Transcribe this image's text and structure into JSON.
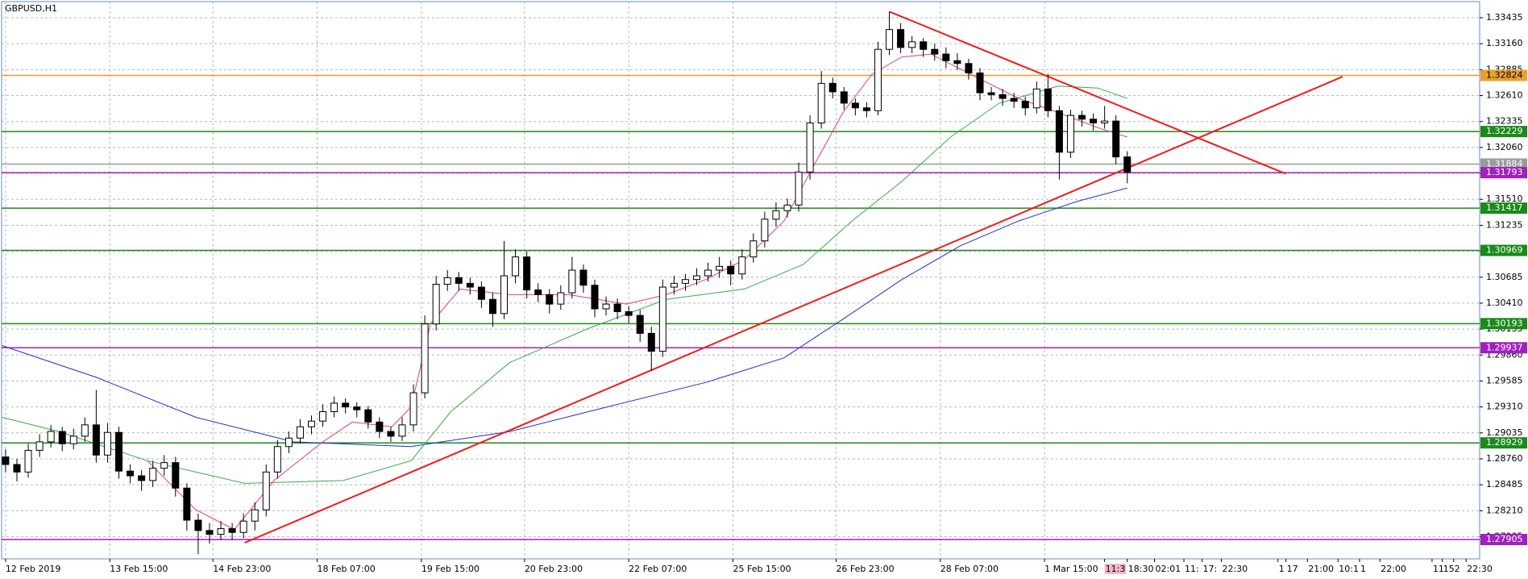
{
  "chart_data": {
    "type": "candlestick",
    "title": "GBPUSD,H1",
    "xlim": [
      -0.35,
      130.1
    ],
    "ylim": [
      1.277,
      1.33606
    ],
    "grid": true,
    "up_color": "#ffffff",
    "down_color": "#000000",
    "yticks": [
      1.33435,
      {
        "value": 1.3316,
        "label": "1.33160"
      },
      1.32885,
      {
        "value": 1.3261,
        "label": "1.32610"
      },
      1.32335,
      {
        "value": 1.3206,
        "label": "1.32060"
      },
      1.31785,
      {
        "value": 1.3151,
        "label": "1.31510"
      },
      1.31235,
      {
        "value": 1.3096,
        "label": "1.30960"
      },
      1.30685,
      {
        "value": 1.3041,
        "label": "1.30410"
      },
      1.30135,
      {
        "value": 1.2986,
        "label": "1.29860"
      },
      1.29585,
      {
        "value": 1.2931,
        "label": "1.29310"
      },
      1.29035,
      {
        "value": 1.2876,
        "label": "1.28760"
      },
      1.28485,
      {
        "value": 1.2821,
        "label": "1.28210"
      },
      1.27935
    ],
    "xticks": [
      {
        "value": 0,
        "label": "12 Feb 2019"
      },
      {
        "value": 9.2,
        "label": "13 Feb 15:00"
      },
      {
        "value": 18.3,
        "label": "14 Feb 23:00"
      },
      {
        "value": 27.5,
        "label": "18 Feb 07:00"
      },
      {
        "value": 36.7,
        "label": "19 Feb 15:00"
      },
      {
        "value": 45.8,
        "label": "20 Feb 23:00"
      },
      {
        "value": 55,
        "label": "22 Feb 07:00"
      },
      {
        "value": 64.2,
        "label": "25 Feb 15:00"
      },
      {
        "value": 73.3,
        "label": "26 Feb 23:00"
      },
      {
        "value": 82.5,
        "label": "28 Feb 07:00"
      },
      {
        "value": 91.7,
        "label": "1 Mar 15:00"
      }
    ],
    "extra_xticks": [
      {
        "value": 97,
        "label": "11:3"
      },
      {
        "value": 99,
        "label": "18:30"
      },
      {
        "value": 101.4,
        "label": "02:01"
      },
      {
        "value": 104,
        "label": "11:"
      },
      {
        "value": 105.6,
        "label": "17:"
      },
      {
        "value": 107.3,
        "label": "22:30"
      },
      {
        "value": 112.3,
        "label": "1"
      },
      {
        "value": 113,
        "label": "17"
      },
      {
        "value": 114.9,
        "label": "21:00"
      },
      {
        "value": 117.6,
        "label": "10:1"
      },
      {
        "value": 119.5,
        "label": "1"
      },
      {
        "value": 121.3,
        "label": "22:00"
      },
      {
        "value": 125.9,
        "label": "11"
      },
      {
        "value": 126.8,
        "label": "15"
      },
      {
        "value": 127.8,
        "label": "2"
      },
      {
        "value": 128.9,
        "label": "22:30"
      }
    ],
    "candles": [
      [
        1.2878,
        1.2886,
        1.2862,
        1.287
      ],
      [
        1.287,
        1.2876,
        1.2852,
        1.2862
      ],
      [
        1.2862,
        1.2892,
        1.2856,
        1.2885
      ],
      [
        1.2885,
        1.2902,
        1.2878,
        1.2894
      ],
      [
        1.2894,
        1.2912,
        1.2888,
        1.2905
      ],
      [
        1.2905,
        1.291,
        1.2884,
        1.2892
      ],
      [
        1.2892,
        1.2908,
        1.2886,
        1.29
      ],
      [
        1.29,
        1.292,
        1.2894,
        1.2912
      ],
      [
        1.2912,
        1.2949,
        1.2872,
        1.288
      ],
      [
        1.288,
        1.2914,
        1.2872,
        1.2904
      ],
      [
        1.2904,
        1.291,
        1.2855,
        1.2863
      ],
      [
        1.2863,
        1.287,
        1.285,
        1.2858
      ],
      [
        1.2858,
        1.2864,
        1.2842,
        1.2853
      ],
      [
        1.2853,
        1.2874,
        1.2846,
        1.2866
      ],
      [
        1.2866,
        1.288,
        1.2858,
        1.2872
      ],
      [
        1.2872,
        1.2878,
        1.2836,
        1.2845
      ],
      [
        1.2845,
        1.285,
        1.28,
        1.2811
      ],
      [
        1.2811,
        1.2818,
        1.2775,
        1.28
      ],
      [
        1.28,
        1.2808,
        1.2786,
        1.2796
      ],
      [
        1.2796,
        1.281,
        1.279,
        1.2802
      ],
      [
        1.2802,
        1.2808,
        1.279,
        1.2798
      ],
      [
        1.2798,
        1.2818,
        1.2792,
        1.281
      ],
      [
        1.281,
        1.283,
        1.28,
        1.2822
      ],
      [
        1.2822,
        1.287,
        1.2815,
        1.2862
      ],
      [
        1.2862,
        1.2896,
        1.2855,
        1.2889
      ],
      [
        1.2889,
        1.2905,
        1.2882,
        1.2898
      ],
      [
        1.2898,
        1.2918,
        1.2892,
        1.291
      ],
      [
        1.291,
        1.2922,
        1.2902,
        1.2916
      ],
      [
        1.2916,
        1.2934,
        1.291,
        1.2926
      ],
      [
        1.2926,
        1.2942,
        1.292,
        1.2935
      ],
      [
        1.2935,
        1.294,
        1.2924,
        1.2931
      ],
      [
        1.2931,
        1.2936,
        1.292,
        1.2928
      ],
      [
        1.2928,
        1.2932,
        1.2908,
        1.2915
      ],
      [
        1.2915,
        1.292,
        1.2898,
        1.2905
      ],
      [
        1.2905,
        1.291,
        1.2894,
        1.29
      ],
      [
        1.29,
        1.292,
        1.2895,
        1.2912
      ],
      [
        1.2912,
        1.2955,
        1.2905,
        1.2946
      ],
      [
        1.2946,
        1.3028,
        1.294,
        1.3019
      ],
      [
        1.3019,
        1.307,
        1.3012,
        1.3061
      ],
      [
        1.3061,
        1.3076,
        1.3054,
        1.3068
      ],
      [
        1.3068,
        1.3074,
        1.3054,
        1.3062
      ],
      [
        1.3062,
        1.3068,
        1.305,
        1.3058
      ],
      [
        1.3058,
        1.3064,
        1.3036,
        1.3045
      ],
      [
        1.3045,
        1.3052,
        1.3016,
        1.303
      ],
      [
        1.303,
        1.3107,
        1.3024,
        1.307
      ],
      [
        1.307,
        1.3098,
        1.3062,
        1.309
      ],
      [
        1.309,
        1.3096,
        1.3046,
        1.3055
      ],
      [
        1.3055,
        1.3062,
        1.3042,
        1.305
      ],
      [
        1.305,
        1.3056,
        1.303,
        1.304
      ],
      [
        1.304,
        1.306,
        1.3034,
        1.3052
      ],
      [
        1.3052,
        1.309,
        1.3046,
        1.3076
      ],
      [
        1.3076,
        1.3082,
        1.3052,
        1.306
      ],
      [
        1.306,
        1.3066,
        1.3026,
        1.3035
      ],
      [
        1.3035,
        1.3048,
        1.3028,
        1.304
      ],
      [
        1.304,
        1.3046,
        1.3024,
        1.3032
      ],
      [
        1.3032,
        1.3038,
        1.302,
        1.3028
      ],
      [
        1.3028,
        1.3034,
        1.3,
        1.3009
      ],
      [
        1.3009,
        1.3016,
        1.2969,
        1.299
      ],
      [
        1.299,
        1.3066,
        1.2984,
        1.3058
      ],
      [
        1.3058,
        1.307,
        1.305,
        1.3062
      ],
      [
        1.3062,
        1.3072,
        1.3054,
        1.3066
      ],
      [
        1.3066,
        1.3078,
        1.306,
        1.307
      ],
      [
        1.307,
        1.3084,
        1.3064,
        1.3076
      ],
      [
        1.3076,
        1.309,
        1.3068,
        1.308
      ],
      [
        1.308,
        1.3086,
        1.306,
        1.3072
      ],
      [
        1.3072,
        1.3098,
        1.3066,
        1.309
      ],
      [
        1.309,
        1.3115,
        1.3084,
        1.3107
      ],
      [
        1.3107,
        1.3138,
        1.31,
        1.313
      ],
      [
        1.313,
        1.3148,
        1.3122,
        1.3139
      ],
      [
        1.3139,
        1.3152,
        1.3132,
        1.3145
      ],
      [
        1.3145,
        1.319,
        1.3138,
        1.318
      ],
      [
        1.318,
        1.324,
        1.3172,
        1.3232
      ],
      [
        1.3232,
        1.3287,
        1.3226,
        1.3274
      ],
      [
        1.3274,
        1.328,
        1.3258,
        1.3265
      ],
      [
        1.3265,
        1.327,
        1.3246,
        1.3253
      ],
      [
        1.3253,
        1.3258,
        1.324,
        1.3248
      ],
      [
        1.3248,
        1.3254,
        1.3238,
        1.3245
      ],
      [
        1.3245,
        1.3318,
        1.324,
        1.331
      ],
      [
        1.331,
        1.335,
        1.3304,
        1.3331
      ],
      [
        1.3331,
        1.3338,
        1.3306,
        1.3312
      ],
      [
        1.3312,
        1.3324,
        1.3306,
        1.3318
      ],
      [
        1.3318,
        1.3322,
        1.3302,
        1.331
      ],
      [
        1.331,
        1.3316,
        1.3298,
        1.3305
      ],
      [
        1.3305,
        1.3312,
        1.329,
        1.3298
      ],
      [
        1.3298,
        1.3306,
        1.3288,
        1.3295
      ],
      [
        1.3295,
        1.33,
        1.3278,
        1.3285
      ],
      [
        1.3285,
        1.329,
        1.3256,
        1.3264
      ],
      [
        1.3264,
        1.327,
        1.3256,
        1.3262
      ],
      [
        1.3262,
        1.3268,
        1.325,
        1.3258
      ],
      [
        1.3258,
        1.3264,
        1.3248,
        1.3255
      ],
      [
        1.3255,
        1.326,
        1.324,
        1.3248
      ],
      [
        1.3248,
        1.3276,
        1.3242,
        1.3268
      ],
      [
        1.3268,
        1.3284,
        1.3238,
        1.3245
      ],
      [
        1.3245,
        1.325,
        1.3172,
        1.3201
      ],
      [
        1.3201,
        1.3246,
        1.3195,
        1.324
      ],
      [
        1.324,
        1.3245,
        1.3228,
        1.3236
      ],
      [
        1.3236,
        1.3242,
        1.3224,
        1.3232
      ],
      [
        1.3232,
        1.325,
        1.3226,
        1.3234
      ],
      [
        1.3234,
        1.324,
        1.3188,
        1.3196
      ],
      [
        1.3196,
        1.3202,
        1.3168,
        1.318
      ]
    ],
    "lines": [
      {
        "color": "#1f2fc8",
        "x": [
          -0.3,
          8.1,
          16.8,
          25.4,
          35.8,
          44.5,
          53.1,
          61.8,
          68.7,
          73.9,
          79.1,
          84.3,
          89.4,
          94.6,
          99
        ],
        "values": [
          1.2996,
          1.2962,
          1.292,
          1.2894,
          1.2889,
          1.2905,
          1.2931,
          1.2957,
          1.2983,
          1.3024,
          1.3066,
          1.3102,
          1.3128,
          1.3149,
          1.3163
        ]
      },
      {
        "color": "#3aa84a",
        "x": [
          -0.3,
          4.7,
          12.5,
          21.1,
          29.8,
          35.8,
          39.3,
          44.5,
          51.4,
          58.3,
          65.2,
          70.4,
          74.7,
          79.1,
          83.4,
          87.7,
          92.9,
          96.4,
          99
        ],
        "values": [
          1.292,
          1.2905,
          1.2874,
          1.285,
          1.2853,
          1.2874,
          1.2926,
          1.2978,
          1.3014,
          1.3045,
          1.3056,
          1.3082,
          1.3128,
          1.317,
          1.3217,
          1.3253,
          1.3271,
          1.3269,
          1.3258
        ]
      },
      {
        "color": "#e0407a",
        "x": [
          12.5,
          16.8,
          20.2,
          23.7,
          28.0,
          30.6,
          34.1,
          35.8,
          37.5,
          40.1,
          44.5,
          49.7,
          54.8,
          58.3,
          61.8,
          65.2,
          68.7,
          71.3,
          73.9,
          76.5,
          79.1,
          81.7,
          85.1,
          89.4,
          92.9,
          96.4,
          99
        ],
        "values": [
          1.2874,
          1.2822,
          1.2801,
          1.2853,
          1.2894,
          1.2915,
          1.291,
          1.2931,
          1.3019,
          1.3056,
          1.305,
          1.305,
          1.304,
          1.305,
          1.3066,
          1.3087,
          1.3128,
          1.3186,
          1.3243,
          1.3284,
          1.3302,
          1.3305,
          1.3284,
          1.3258,
          1.3243,
          1.3227,
          1.3217
        ]
      },
      {
        "color": "#ee1c1c",
        "x": [
          21.1,
          118
        ],
        "values": [
          1.2787,
          1.3281
        ]
      },
      {
        "color": "#ee1c1c",
        "x": [
          78,
          113
        ],
        "values": [
          1.335,
          1.3178
        ]
      }
    ],
    "levels": [
      {
        "value": 1.32824,
        "color": "#e8a030"
      },
      {
        "value": 1.32229,
        "color": "#1a8a1a"
      },
      {
        "value": 1.31884,
        "color": "#9a9a9a"
      },
      {
        "value": 1.31793,
        "color": "#a020c0"
      },
      {
        "value": 1.31417,
        "color": "#1a8a1a"
      },
      {
        "value": 1.30969,
        "color": "#1a8a1a"
      },
      {
        "value": 1.30193,
        "color": "#1a8a1a"
      },
      {
        "value": 1.29937,
        "color": "#a020c0"
      },
      {
        "value": 1.28929,
        "color": "#1a8a1a"
      },
      {
        "value": 1.27905,
        "color": "#a020c0"
      }
    ]
  }
}
